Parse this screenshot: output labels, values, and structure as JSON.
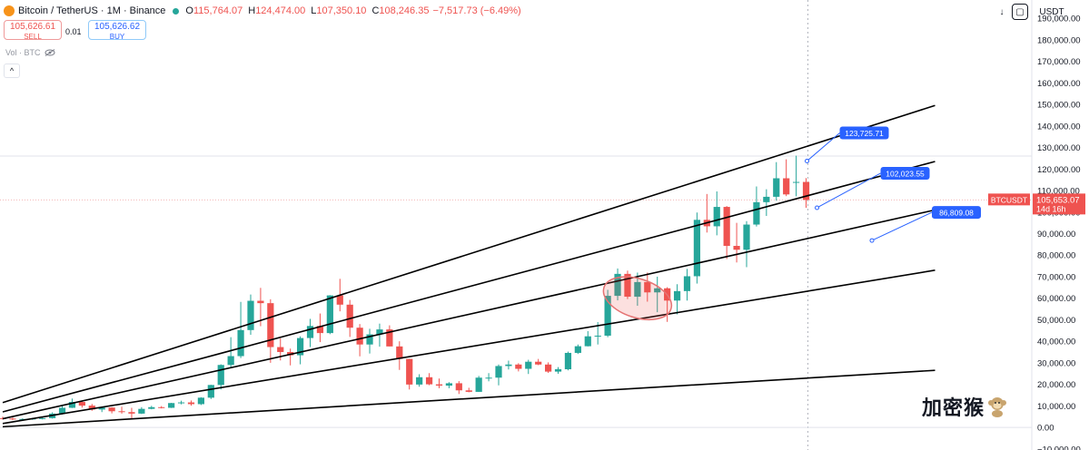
{
  "header": {
    "symbol": "Bitcoin / TetherUS · 1M · Binance",
    "o_label": "O",
    "o_value": "115,764.07",
    "h_label": "H",
    "h_value": "124,474.00",
    "l_label": "L",
    "l_value": "107,350.10",
    "c_label": "C",
    "c_value": "108,246.35",
    "change": "−7,517.73 (−6.49%)"
  },
  "trade": {
    "sell_price": "105,626.61",
    "sell_label": "SELL",
    "spread": "0.01",
    "buy_price": "105,626.62",
    "buy_label": "BUY"
  },
  "volume_label": "Vol · BTC",
  "collapse_icon": "chevron-up-icon",
  "toolbar": {
    "currency": "USDT",
    "download_icon": "arrow-down-icon",
    "screenshot_icon": "square-icon"
  },
  "watermark": "加密猴",
  "colors": {
    "up": "#26a69a",
    "down": "#ef5350",
    "callout": "#2962ff",
    "trendline": "#000000"
  },
  "chart_data": {
    "type": "candlestick",
    "interval": "1M",
    "y_axis": {
      "ticks": [
        -10000,
        0,
        10000,
        20000,
        30000,
        40000,
        50000,
        60000,
        70000,
        80000,
        90000,
        100000,
        110000,
        120000,
        130000,
        140000,
        150000,
        160000,
        170000,
        180000,
        190000
      ],
      "tick_labels": [
        "−10,000.00",
        "0.00",
        "10,000.00",
        "20,000.00",
        "30,000.00",
        "40,000.00",
        "50,000.00",
        "60,000.00",
        "70,000.00",
        "80,000.00",
        "90,000.00",
        "100,000.00",
        "110,000.00",
        "120,000.00",
        "130,000.00",
        "140,000.00",
        "150,000.00",
        "160,000.00",
        "170,000.00",
        "180,000.00",
        "190,000.00"
      ],
      "range": [
        -10500,
        198500
      ]
    },
    "candles": [
      {
        "o": 4300,
        "h": 5000,
        "l": 3600,
        "c": 4100
      },
      {
        "o": 4100,
        "h": 4600,
        "l": 3400,
        "c": 3700
      },
      {
        "o": 3700,
        "h": 4200,
        "l": 3200,
        "c": 3900
      },
      {
        "o": 3900,
        "h": 4400,
        "l": 3500,
        "c": 4100
      },
      {
        "o": 4100,
        "h": 4800,
        "l": 3700,
        "c": 4300
      },
      {
        "o": 4300,
        "h": 7000,
        "l": 4100,
        "c": 6400
      },
      {
        "o": 6400,
        "h": 10000,
        "l": 6000,
        "c": 9100
      },
      {
        "o": 9100,
        "h": 13400,
        "l": 9000,
        "c": 11800
      },
      {
        "o": 11800,
        "h": 12300,
        "l": 9200,
        "c": 10100
      },
      {
        "o": 10100,
        "h": 10900,
        "l": 7700,
        "c": 8300
      },
      {
        "o": 8300,
        "h": 9600,
        "l": 7100,
        "c": 9200
      },
      {
        "o": 9200,
        "h": 9400,
        "l": 6500,
        "c": 7500
      },
      {
        "o": 7500,
        "h": 9600,
        "l": 6400,
        "c": 7100
      },
      {
        "o": 7100,
        "h": 9100,
        "l": 3800,
        "c": 6400
      },
      {
        "o": 6400,
        "h": 9400,
        "l": 6200,
        "c": 8600
      },
      {
        "o": 8600,
        "h": 10000,
        "l": 8400,
        "c": 9400
      },
      {
        "o": 9400,
        "h": 9900,
        "l": 8800,
        "c": 9100
      },
      {
        "o": 9100,
        "h": 11400,
        "l": 9000,
        "c": 11300
      },
      {
        "o": 11300,
        "h": 12400,
        "l": 10700,
        "c": 11600
      },
      {
        "o": 11600,
        "h": 12500,
        "l": 10100,
        "c": 10800
      },
      {
        "o": 10800,
        "h": 14000,
        "l": 10400,
        "c": 13800
      },
      {
        "o": 13800,
        "h": 19800,
        "l": 13200,
        "c": 19700
      },
      {
        "o": 19700,
        "h": 29300,
        "l": 17600,
        "c": 29000
      },
      {
        "o": 29000,
        "h": 41900,
        "l": 28100,
        "c": 33100
      },
      {
        "o": 33100,
        "h": 58300,
        "l": 32200,
        "c": 45200
      },
      {
        "o": 45200,
        "h": 61700,
        "l": 43000,
        "c": 58800
      },
      {
        "o": 58800,
        "h": 64800,
        "l": 47000,
        "c": 57700
      },
      {
        "o": 57700,
        "h": 59500,
        "l": 30000,
        "c": 37300
      },
      {
        "o": 37300,
        "h": 41300,
        "l": 31100,
        "c": 35000
      },
      {
        "o": 35000,
        "h": 36600,
        "l": 28800,
        "c": 33500
      },
      {
        "o": 33500,
        "h": 42300,
        "l": 29300,
        "c": 41500
      },
      {
        "o": 41500,
        "h": 50400,
        "l": 37300,
        "c": 47100
      },
      {
        "o": 47100,
        "h": 52900,
        "l": 39600,
        "c": 43800
      },
      {
        "o": 43800,
        "h": 61400,
        "l": 43300,
        "c": 61300
      },
      {
        "o": 61300,
        "h": 69000,
        "l": 53900,
        "c": 57000
      },
      {
        "o": 57000,
        "h": 59200,
        "l": 42000,
        "c": 46300
      },
      {
        "o": 46300,
        "h": 48000,
        "l": 33000,
        "c": 38500
      },
      {
        "o": 38500,
        "h": 45800,
        "l": 34300,
        "c": 43200
      },
      {
        "o": 43200,
        "h": 48200,
        "l": 37500,
        "c": 45500
      },
      {
        "o": 45500,
        "h": 47400,
        "l": 37600,
        "c": 37600
      },
      {
        "o": 37600,
        "h": 40000,
        "l": 26700,
        "c": 31800
      },
      {
        "o": 31800,
        "h": 31900,
        "l": 17600,
        "c": 19900
      },
      {
        "o": 19900,
        "h": 24700,
        "l": 18900,
        "c": 23300
      },
      {
        "o": 23300,
        "h": 25200,
        "l": 19600,
        "c": 20000
      },
      {
        "o": 20000,
        "h": 22700,
        "l": 18200,
        "c": 19400
      },
      {
        "o": 19400,
        "h": 21000,
        "l": 18200,
        "c": 20500
      },
      {
        "o": 20500,
        "h": 21500,
        "l": 15500,
        "c": 17200
      },
      {
        "o": 17200,
        "h": 18400,
        "l": 16300,
        "c": 16500
      },
      {
        "o": 16500,
        "h": 23900,
        "l": 16500,
        "c": 23100
      },
      {
        "o": 23100,
        "h": 25200,
        "l": 21400,
        "c": 23100
      },
      {
        "o": 23100,
        "h": 29200,
        "l": 19500,
        "c": 28500
      },
      {
        "o": 28500,
        "h": 31000,
        "l": 26900,
        "c": 29200
      },
      {
        "o": 29200,
        "h": 29800,
        "l": 26000,
        "c": 27200
      },
      {
        "o": 27200,
        "h": 31400,
        "l": 24800,
        "c": 30500
      },
      {
        "o": 30500,
        "h": 31800,
        "l": 28900,
        "c": 29200
      },
      {
        "o": 29200,
        "h": 30200,
        "l": 25300,
        "c": 25900
      },
      {
        "o": 25900,
        "h": 28000,
        "l": 24900,
        "c": 27000
      },
      {
        "o": 27000,
        "h": 35200,
        "l": 26500,
        "c": 34600
      },
      {
        "o": 34600,
        "h": 38500,
        "l": 34100,
        "c": 37700
      },
      {
        "o": 37700,
        "h": 44700,
        "l": 37600,
        "c": 42300
      },
      {
        "o": 42300,
        "h": 48900,
        "l": 38500,
        "c": 42600
      },
      {
        "o": 42600,
        "h": 63900,
        "l": 41900,
        "c": 61100
      },
      {
        "o": 61100,
        "h": 73800,
        "l": 59000,
        "c": 71300
      },
      {
        "o": 71300,
        "h": 72800,
        "l": 59600,
        "c": 60700
      },
      {
        "o": 60700,
        "h": 71900,
        "l": 56500,
        "c": 67500
      },
      {
        "o": 67500,
        "h": 71900,
        "l": 58400,
        "c": 62700
      },
      {
        "o": 62700,
        "h": 70000,
        "l": 53500,
        "c": 64600
      },
      {
        "o": 64600,
        "h": 65100,
        "l": 49000,
        "c": 58900
      },
      {
        "o": 58900,
        "h": 66500,
        "l": 52500,
        "c": 63300
      },
      {
        "o": 63300,
        "h": 73600,
        "l": 58900,
        "c": 70200
      },
      {
        "o": 70200,
        "h": 99800,
        "l": 66800,
        "c": 96400
      },
      {
        "o": 96400,
        "h": 108400,
        "l": 90500,
        "c": 93400
      },
      {
        "o": 93400,
        "h": 109600,
        "l": 89200,
        "c": 102400
      },
      {
        "o": 102400,
        "h": 102800,
        "l": 78200,
        "c": 84300
      },
      {
        "o": 84300,
        "h": 95000,
        "l": 76600,
        "c": 82500
      },
      {
        "o": 82500,
        "h": 95800,
        "l": 74400,
        "c": 94200
      },
      {
        "o": 94200,
        "h": 111900,
        "l": 93300,
        "c": 104600
      },
      {
        "o": 104600,
        "h": 110600,
        "l": 98200,
        "c": 107100
      },
      {
        "o": 107100,
        "h": 123200,
        "l": 105300,
        "c": 115700
      },
      {
        "o": 115700,
        "h": 124500,
        "l": 107400,
        "c": 108200
      },
      {
        "o": 114000,
        "h": 126200,
        "l": 107300,
        "c": 114000
      },
      {
        "o": 114000,
        "h": 115800,
        "l": 102000,
        "c": 105650
      }
    ],
    "trendlines": [
      {
        "start": [
          0,
          11500
        ],
        "end": [
          94,
          149500
        ]
      },
      {
        "start": [
          0,
          7200
        ],
        "end": [
          94,
          123500
        ]
      },
      {
        "start": [
          0,
          4000
        ],
        "end": [
          94,
          101000
        ]
      },
      {
        "start": [
          0,
          1800
        ],
        "end": [
          94,
          73000
        ]
      },
      {
        "start": [
          0,
          300
        ],
        "end": [
          94,
          26500
        ]
      }
    ],
    "callouts": [
      {
        "label": "123,725.71",
        "value": 123725.71
      },
      {
        "label": "102,023.55",
        "value": 102023.55
      },
      {
        "label": "86,809.08",
        "value": 86809.08
      }
    ],
    "highlight_ellipse": {
      "from_index": 61,
      "to_index": 67,
      "y_range": [
        51000,
        69000
      ]
    },
    "price_tag": {
      "symbol": "BTCUSDT",
      "value": "105,653.07",
      "countdown": "14d 16h",
      "price": 105653.07
    },
    "reference_line": 126000
  }
}
